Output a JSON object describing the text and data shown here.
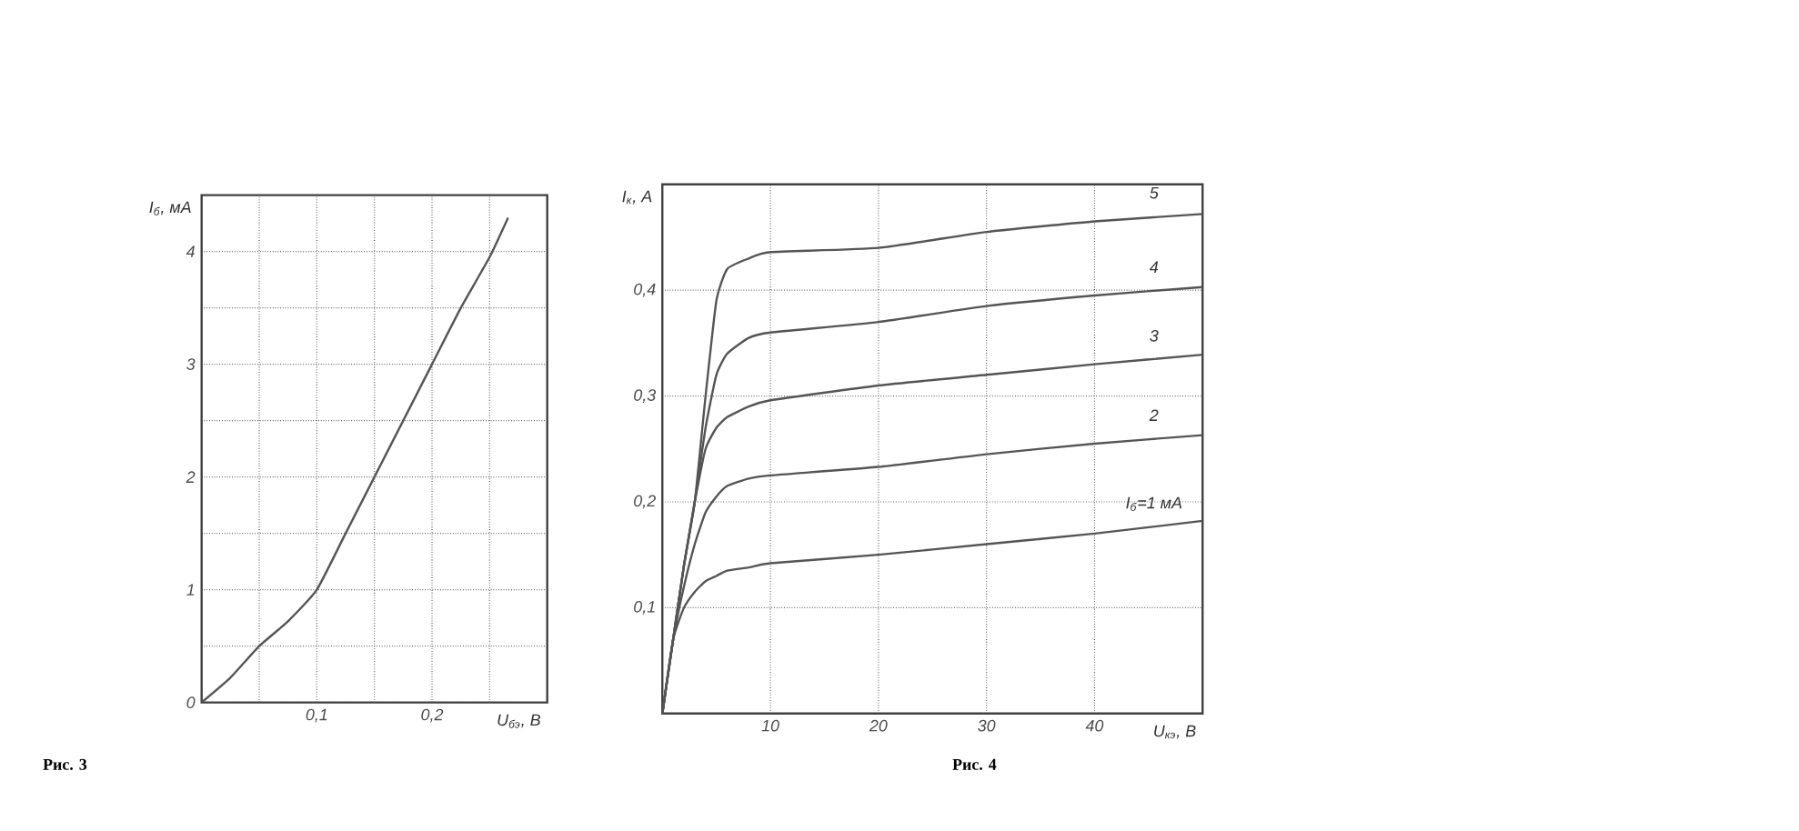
{
  "chart_data": [
    {
      "type": "line",
      "xlabel": "U$_{бэ}$, В",
      "ylabel": "I$_{б}$, мА",
      "x": [
        0,
        0.025,
        0.05,
        0.075,
        0.1,
        0.125,
        0.15,
        0.175,
        0.2,
        0.225,
        0.25,
        0.266
      ],
      "series": [
        {
          "color": "#555555",
          "values": [
            0,
            0.22,
            0.5,
            0.72,
            1.0,
            1.5,
            2.0,
            2.5,
            3.0,
            3.5,
            3.95,
            4.3
          ]
        }
      ],
      "xlim": [
        0,
        0.3
      ],
      "ylim": [
        0,
        4.5
      ],
      "xticks": [
        {
          "value": 0.05,
          "label": null
        },
        {
          "value": 0.1,
          "label": "0,1"
        },
        {
          "value": 0.15,
          "label": null
        },
        {
          "value": 0.2,
          "label": "0,2"
        },
        {
          "value": 0.25,
          "label": null
        }
      ],
      "yticks": [
        0,
        {
          "value": 0.5,
          "label": null
        },
        1,
        {
          "value": 1.5,
          "label": null
        },
        2,
        {
          "value": 2.5,
          "label": null
        },
        3,
        {
          "value": 3.5,
          "label": null
        },
        4
      ],
      "grid": true,
      "annotations": [
        "Рис. 3"
      ]
    },
    {
      "type": "line",
      "xlabel": "U$_{кэ}$, В",
      "ylabel": "I$_{к}$, А",
      "x": [
        0,
        1,
        2,
        3,
        4,
        5,
        6,
        8,
        10,
        20,
        30,
        40,
        50
      ],
      "series": [
        {
          "name": "I$_{б}$=1 мА",
          "color": "#555555",
          "values": [
            0,
            0.07,
            0.1,
            0.115,
            0.125,
            0.13,
            0.135,
            0.138,
            0.142,
            0.15,
            0.16,
            0.17,
            0.182
          ]
        },
        {
          "name": "2",
          "color": "#555555",
          "values": [
            0,
            0.07,
            0.12,
            0.16,
            0.19,
            0.205,
            0.215,
            0.222,
            0.225,
            0.233,
            0.245,
            0.255,
            0.263
          ]
        },
        {
          "name": "3",
          "color": "#555555",
          "values": [
            0,
            0.07,
            0.14,
            0.2,
            0.25,
            0.27,
            0.28,
            0.29,
            0.296,
            0.31,
            0.32,
            0.33,
            0.339
          ]
        },
        {
          "name": "4",
          "color": "#555555",
          "values": [
            0,
            0.07,
            0.14,
            0.2,
            0.27,
            0.32,
            0.34,
            0.355,
            0.36,
            0.37,
            0.385,
            0.395,
            0.403
          ]
        },
        {
          "name": "5",
          "color": "#555555",
          "values": [
            0,
            0.07,
            0.14,
            0.2,
            0.3,
            0.39,
            0.42,
            0.43,
            0.436,
            0.44,
            0.455,
            0.465,
            0.472
          ]
        }
      ],
      "xlim": [
        0,
        50
      ],
      "ylim": [
        0,
        0.5
      ],
      "xticks": [
        10,
        20,
        30,
        40
      ],
      "yticks": [
        {
          "value": 0.1,
          "label": "0,1"
        },
        {
          "value": 0.2,
          "label": "0,2"
        },
        {
          "value": 0.3,
          "label": "0,3"
        },
        {
          "value": 0.4,
          "label": "0,4"
        },
        {
          "value": 0.5,
          "label": null
        }
      ],
      "grid": true,
      "annotations": [
        "Рис. 4"
      ]
    }
  ]
}
